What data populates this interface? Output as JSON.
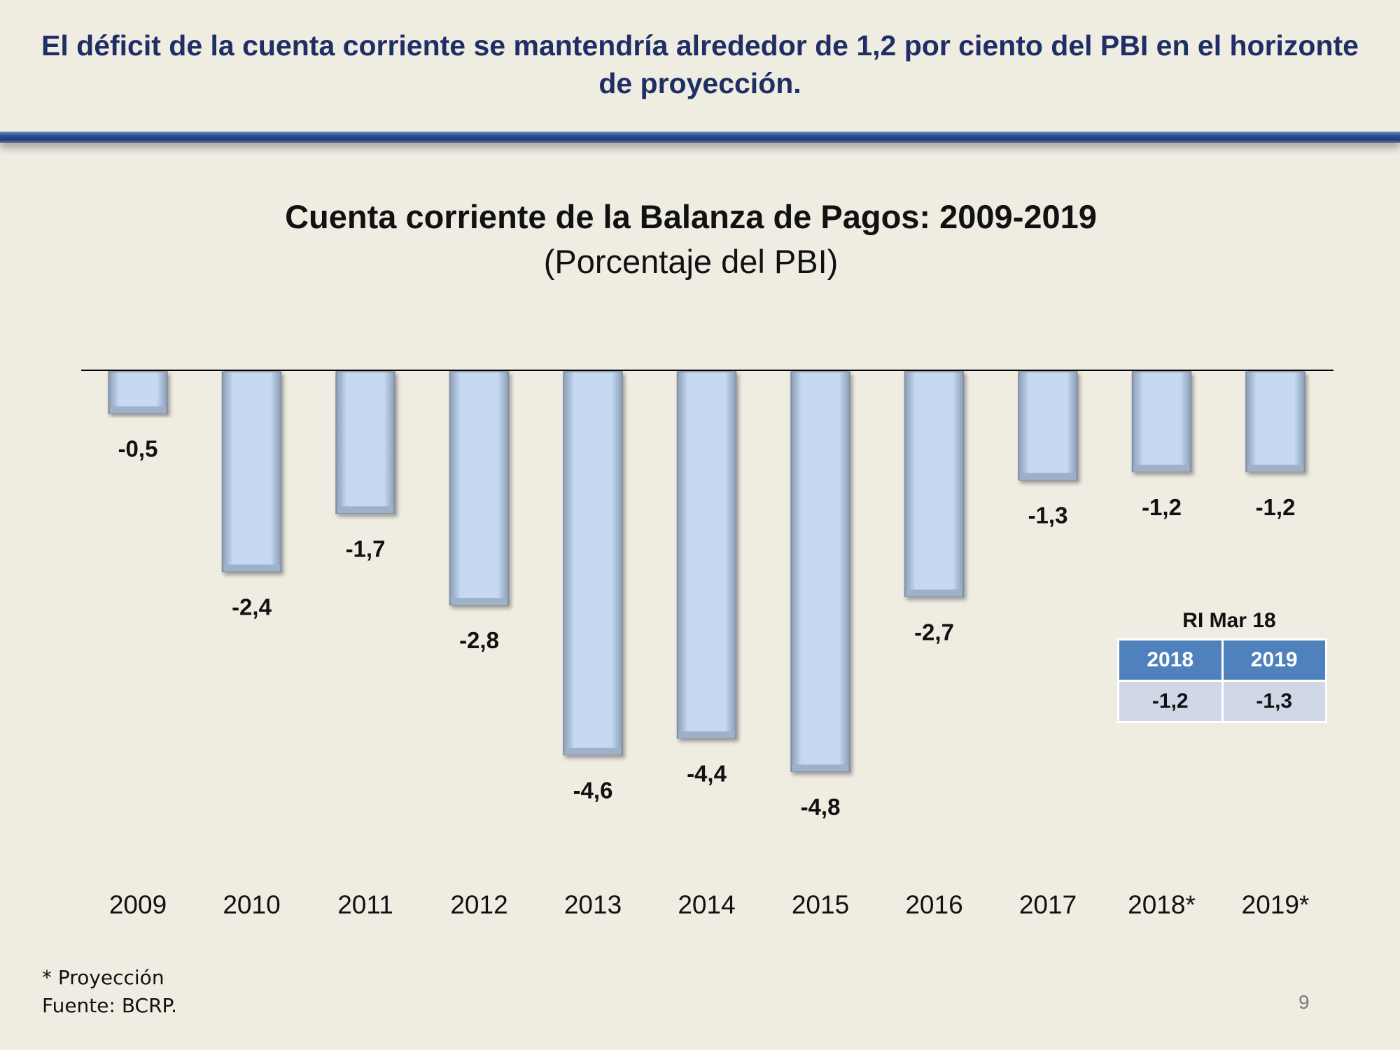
{
  "slide": {
    "headline": "El déficit de la cuenta corriente se mantendría alrededor de 1,2 por ciento del PBI en el horizonte de proyección.",
    "footnote": "* Proyección",
    "source": "Fuente: BCRP.",
    "page_number": "9"
  },
  "chart_data": {
    "type": "bar",
    "title": "Cuenta corriente de la Balanza de Pagos: 2009-2019",
    "subtitle": "(Porcentaje del PBI)",
    "categories": [
      "2009",
      "2010",
      "2011",
      "2012",
      "2013",
      "2014",
      "2015",
      "2016",
      "2017",
      "2018*",
      "2019*"
    ],
    "values": [
      -0.5,
      -2.4,
      -1.7,
      -2.8,
      -4.6,
      -4.4,
      -4.8,
      -2.7,
      -1.3,
      -1.2,
      -1.2
    ],
    "value_labels": [
      "-0,5",
      "-2,4",
      "-1,7",
      "-2,8",
      "-4,6",
      "-4,4",
      "-4,8",
      "-2,7",
      "-1,3",
      "-1,2",
      "-1,2"
    ],
    "bar_color": "#c5d9f1",
    "legend": "none",
    "grid": false
  },
  "inset_table": {
    "caption": "RI Mar 18",
    "headers": [
      "2018",
      "2019"
    ],
    "values": [
      "-1,2",
      "-1,3"
    ],
    "header_color": "#4f81bd",
    "cell_color": "#d0d8e8"
  }
}
